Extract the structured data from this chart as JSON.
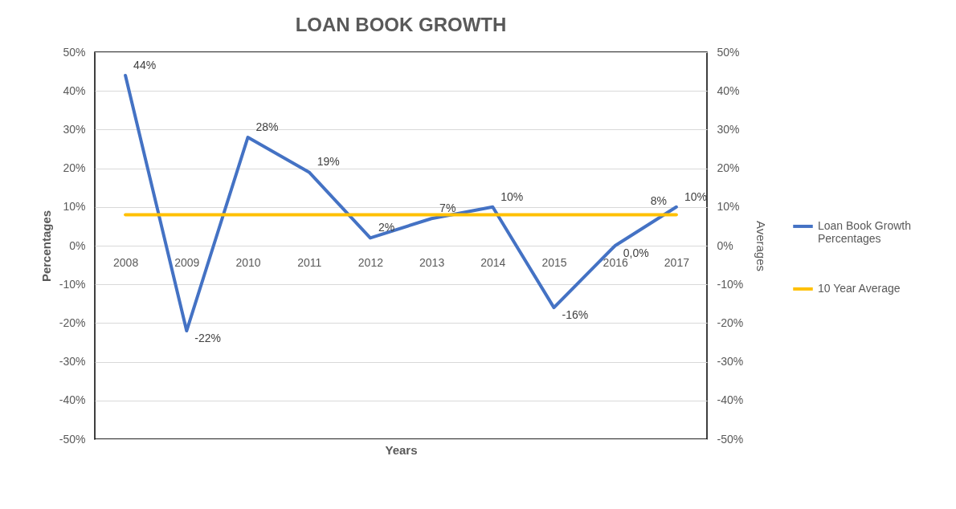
{
  "chart_data": {
    "type": "line",
    "title": "LOAN BOOK GROWTH",
    "xlabel": "Years",
    "ylabel": "Percentages",
    "y2label": "Averages",
    "categories": [
      "2008",
      "2009",
      "2010",
      "2011",
      "2012",
      "2013",
      "2014",
      "2015",
      "2016",
      "2017"
    ],
    "series": [
      {
        "name": "Loan Book Growth Percentages",
        "color": "#4472c4",
        "values": [
          44,
          -22,
          28,
          19,
          2,
          7,
          10,
          -16,
          0,
          10
        ],
        "value_labels": [
          "44%",
          "-22%",
          "28%",
          "19%",
          "2%",
          "7%",
          "10%",
          "-16%",
          "0,0%",
          "10%"
        ]
      },
      {
        "name": "10 Year Average",
        "color": "#ffc000",
        "axis": "y2",
        "values": [
          8,
          8,
          8,
          8,
          8,
          8,
          8,
          8,
          8,
          8
        ],
        "value_labels": [
          null,
          null,
          null,
          null,
          null,
          null,
          null,
          null,
          null,
          "8%"
        ]
      }
    ],
    "ylim": [
      -50,
      50
    ],
    "yticks": [
      {
        "value": -50,
        "label": "-50%"
      },
      {
        "value": -40,
        "label": "-40%"
      },
      {
        "value": -30,
        "label": "-30%"
      },
      {
        "value": -20,
        "label": "-20%"
      },
      {
        "value": -10,
        "label": "-10%"
      },
      {
        "value": 0,
        "label": "0%"
      },
      {
        "value": 10,
        "label": "10%"
      },
      {
        "value": 20,
        "label": "20%"
      },
      {
        "value": 30,
        "label": "30%"
      },
      {
        "value": 40,
        "label": "40%"
      },
      {
        "value": 50,
        "label": "50%"
      }
    ],
    "y2lim": [
      -50,
      50
    ],
    "y2ticks": [
      {
        "value": -50,
        "label": "-50%"
      },
      {
        "value": -40,
        "label": "-40%"
      },
      {
        "value": -30,
        "label": "-30%"
      },
      {
        "value": -20,
        "label": "-20%"
      },
      {
        "value": -10,
        "label": "-10%"
      },
      {
        "value": 0,
        "label": "0%"
      },
      {
        "value": 10,
        "label": "10%"
      },
      {
        "value": 20,
        "label": "20%"
      },
      {
        "value": 30,
        "label": "30%"
      },
      {
        "value": 40,
        "label": "40%"
      },
      {
        "value": 50,
        "label": "50%"
      }
    ],
    "grid": "y",
    "legend": "right",
    "marker": "none",
    "line_style": "solid"
  }
}
